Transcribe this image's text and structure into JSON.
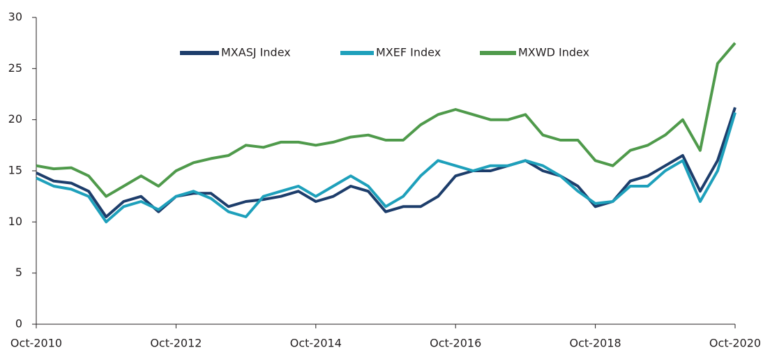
{
  "chart_data": {
    "type": "line",
    "categories": [
      "Oct-2010",
      null,
      null,
      null,
      null,
      null,
      null,
      null,
      "Oct-2012",
      null,
      null,
      null,
      null,
      null,
      null,
      null,
      "Oct-2014",
      null,
      null,
      null,
      null,
      null,
      null,
      null,
      "Oct-2016",
      null,
      null,
      null,
      null,
      null,
      null,
      null,
      "Oct-2018",
      null,
      null,
      null,
      null,
      null,
      null,
      null,
      "Oct-2020"
    ],
    "series": [
      {
        "name": "MXASJ Index",
        "color": "#1d3d6b",
        "values": [
          14.8,
          14.0,
          13.8,
          13.0,
          10.5,
          12.0,
          12.5,
          11.0,
          12.5,
          12.8,
          12.8,
          11.5,
          12.0,
          12.2,
          12.5,
          13.0,
          12.0,
          12.5,
          13.5,
          13.0,
          11.0,
          11.5,
          11.5,
          12.5,
          14.5,
          15.0,
          15.0,
          15.5,
          16.0,
          15.0,
          14.5,
          13.5,
          11.5,
          12.0,
          14.0,
          14.5,
          15.5,
          16.5,
          13.0,
          16.0,
          21.2
        ]
      },
      {
        "name": "MXEF Index",
        "color": "#1ea0bb",
        "values": [
          14.3,
          13.5,
          13.2,
          12.5,
          10.0,
          11.5,
          12.0,
          11.2,
          12.5,
          13.0,
          12.3,
          11.0,
          10.5,
          12.5,
          13.0,
          13.5,
          12.5,
          13.5,
          14.5,
          13.5,
          11.5,
          12.5,
          14.5,
          16.0,
          15.5,
          15.0,
          15.5,
          15.5,
          16.0,
          15.5,
          14.5,
          13.0,
          11.8,
          12.0,
          13.5,
          13.5,
          15.0,
          16.0,
          12.0,
          15.0,
          20.7
        ]
      },
      {
        "name": "MXWD Index",
        "color": "#4f9a4b",
        "values": [
          15.5,
          15.2,
          15.3,
          14.5,
          12.5,
          13.5,
          14.5,
          13.5,
          15.0,
          15.8,
          16.2,
          16.5,
          17.5,
          17.3,
          17.8,
          17.8,
          17.5,
          17.8,
          18.3,
          18.5,
          18.0,
          18.0,
          19.5,
          20.5,
          21.0,
          20.5,
          20.0,
          20.0,
          20.5,
          18.5,
          18.0,
          18.0,
          16.0,
          15.5,
          17.0,
          17.5,
          18.5,
          20.0,
          17.0,
          25.5,
          27.5
        ]
      }
    ],
    "ylim": [
      0,
      30
    ],
    "yticks": [
      0,
      5,
      10,
      15,
      20,
      25,
      30
    ],
    "grid": false,
    "legend": "top"
  }
}
